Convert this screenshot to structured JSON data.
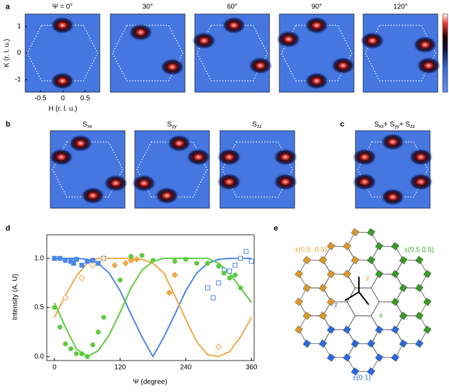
{
  "panel_labels": [
    "a",
    "b",
    "c",
    "d",
    "e"
  ],
  "panel_a": {
    "titles": [
      "Ψ = 0°",
      "30°",
      "60°",
      "90°",
      "120°"
    ],
    "y_axis_label": "K (r. l. u.)",
    "x_axis_label": "H (r. l. u.)",
    "yticks": [
      1,
      0,
      -1
    ],
    "xticks": [
      -0.5,
      0,
      0.5
    ]
  },
  "panel_b": {
    "titles": [
      [
        "S",
        "xx"
      ],
      [
        "S",
        "yy"
      ],
      [
        "S",
        "zz"
      ]
    ]
  },
  "panel_c": {
    "title": [
      "S",
      "xx",
      "+ S",
      "yy",
      "+ S",
      "zz"
    ]
  },
  "chart_data": {
    "type": "scatter",
    "xlabel": "Ψ (degree)",
    "ylabel": "Intensity (A. U)",
    "xlim": [
      -14,
      365
    ],
    "ylim": [
      -0.04,
      1.24
    ],
    "xticks": [
      0,
      120,
      240,
      360
    ],
    "yticks": [
      {
        "value": 0,
        "label": "0.0"
      },
      0.5,
      {
        "value": 1,
        "label": "1.0"
      }
    ],
    "series": [
      {
        "mode": "line",
        "color": "#4a86e8",
        "x": [
          0,
          20,
          40,
          60,
          80,
          100,
          120,
          140,
          160,
          180,
          200,
          220,
          240,
          260,
          280,
          300,
          320,
          340,
          360
        ],
        "values": [
          1.0,
          1.0,
          1.0,
          0.99,
          0.95,
          0.85,
          0.67,
          0.43,
          0.2,
          0.0,
          0.2,
          0.43,
          0.67,
          0.85,
          0.95,
          0.99,
          1.0,
          1.0,
          1.0
        ]
      },
      {
        "mode": "line",
        "color": "#f0a848",
        "x": [
          0,
          20,
          40,
          60,
          80,
          100,
          120,
          140,
          160,
          180,
          200,
          220,
          240,
          260,
          280,
          300,
          320,
          340,
          360
        ],
        "values": [
          0.4,
          0.62,
          0.82,
          0.95,
          1.0,
          1.0,
          1.0,
          1.0,
          0.99,
          0.95,
          0.85,
          0.62,
          0.38,
          0.15,
          0.02,
          0.0,
          0.05,
          0.2,
          0.4
        ]
      },
      {
        "mode": "line",
        "color": "#5ccc3c",
        "x": [
          0,
          20,
          40,
          60,
          80,
          100,
          120,
          140,
          160,
          180,
          200,
          220,
          240,
          260,
          280,
          300,
          320,
          340,
          360
        ],
        "values": [
          0.55,
          0.3,
          0.08,
          0.0,
          0.06,
          0.22,
          0.45,
          0.7,
          0.88,
          0.97,
          1.0,
          1.0,
          1.0,
          1.0,
          1.0,
          0.95,
          0.85,
          0.7,
          0.55
        ]
      },
      {
        "mode": "marker",
        "marker": "square",
        "filled": true,
        "color": "#4a86e8",
        "x": [
          0,
          10,
          20,
          30,
          35,
          40,
          50,
          60,
          70,
          80,
          90
        ],
        "values": [
          1.0,
          1.0,
          0.98,
          0.97,
          0.95,
          0.99,
          0.93,
          0.97,
          0.98,
          0.95,
          1.0
        ]
      },
      {
        "mode": "marker",
        "marker": "square",
        "filled": false,
        "color": "#4a86e8",
        "x": [
          280,
          290,
          300,
          310,
          320,
          330,
          340,
          350,
          360
        ],
        "values": [
          0.7,
          0.6,
          0.75,
          0.88,
          0.87,
          0.93,
          1.0,
          1.07,
          0.97
        ]
      },
      {
        "mode": "marker",
        "marker": "diamond",
        "filled": true,
        "color": "#f0a848",
        "x": [
          110,
          130,
          140,
          150,
          210,
          220
        ],
        "values": [
          0.93,
          0.95,
          0.98,
          0.99,
          0.65,
          0.83
        ]
      },
      {
        "mode": "marker",
        "marker": "diamond",
        "filled": false,
        "color": "#f0a848",
        "x": [
          20,
          50,
          70,
          90,
          300
        ],
        "values": [
          0.6,
          0.8,
          0.93,
          1.0,
          0.1
        ]
      },
      {
        "mode": "marker",
        "marker": "circle",
        "filled": true,
        "color": "#5ccc3c",
        "x": [
          0,
          10,
          20,
          30,
          40,
          50,
          60,
          70,
          80,
          90,
          120,
          140,
          160,
          180,
          220,
          240,
          260,
          280,
          300,
          310,
          320,
          330,
          340
        ],
        "values": [
          0.5,
          0.3,
          0.13,
          0.08,
          0.03,
          0.03,
          0.0,
          0.12,
          0.25,
          0.4,
          0.78,
          1.02,
          1.03,
          0.98,
          0.97,
          0.99,
          0.95,
          0.95,
          0.92,
          0.85,
          0.8,
          0.83,
          0.7
        ]
      }
    ]
  },
  "panel_e": {
    "labels": [
      {
        "text": "±(0.5 -0.5)",
        "color": "#e8a030"
      },
      {
        "text": "±(0.5 0.5)",
        "color": "#3caa2a"
      },
      {
        "text": "±(0 1)",
        "color": "#2a6ae0"
      },
      {
        "text": "y",
        "color": "#e8a030"
      },
      {
        "text": "z",
        "color": "#2a6ae0"
      },
      {
        "text": "x",
        "color": "#3caa2a"
      }
    ]
  }
}
